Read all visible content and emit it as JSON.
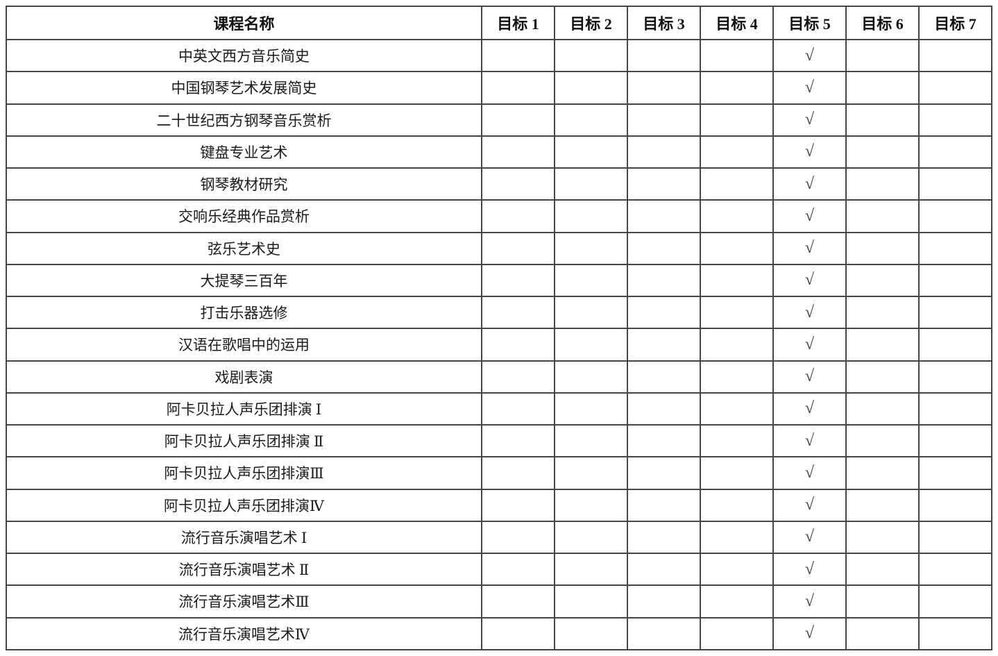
{
  "document": {
    "table": {
      "header": {
        "course_column": "课程名称",
        "goal_columns": [
          "目标 1",
          "目标 2",
          "目标 3",
          "目标 4",
          "目标 5",
          "目标 6",
          "目标 7"
        ]
      },
      "check_symbol": "√",
      "rows": [
        {
          "course": "中英文西方音乐简史",
          "checked_goals": [
            5
          ]
        },
        {
          "course": "中国钢琴艺术发展简史",
          "checked_goals": [
            5
          ]
        },
        {
          "course": "二十世纪西方钢琴音乐赏析",
          "checked_goals": [
            5
          ]
        },
        {
          "course": "键盘专业艺术",
          "checked_goals": [
            5
          ]
        },
        {
          "course": "钢琴教材研究",
          "checked_goals": [
            5
          ]
        },
        {
          "course": "交响乐经典作品赏析",
          "checked_goals": [
            5
          ]
        },
        {
          "course": "弦乐艺术史",
          "checked_goals": [
            5
          ]
        },
        {
          "course": "大提琴三百年",
          "checked_goals": [
            5
          ]
        },
        {
          "course": "打击乐器选修",
          "checked_goals": [
            5
          ]
        },
        {
          "course": "汉语在歌唱中的运用",
          "checked_goals": [
            5
          ]
        },
        {
          "course": "戏剧表演",
          "checked_goals": [
            5
          ]
        },
        {
          "course": "阿卡贝拉人声乐团排演 Ⅰ",
          "checked_goals": [
            5
          ]
        },
        {
          "course": "阿卡贝拉人声乐团排演 Ⅱ",
          "checked_goals": [
            5
          ]
        },
        {
          "course": "阿卡贝拉人声乐团排演Ⅲ",
          "checked_goals": [
            5
          ]
        },
        {
          "course": "阿卡贝拉人声乐团排演Ⅳ",
          "checked_goals": [
            5
          ]
        },
        {
          "course": "流行音乐演唱艺术 Ⅰ",
          "checked_goals": [
            5
          ]
        },
        {
          "course": "流行音乐演唱艺术 Ⅱ",
          "checked_goals": [
            5
          ]
        },
        {
          "course": "流行音乐演唱艺术Ⅲ",
          "checked_goals": [
            5
          ]
        },
        {
          "course": "流行音乐演唱艺术Ⅳ",
          "checked_goals": [
            5
          ]
        }
      ]
    },
    "colors": {
      "background": "#ffffff",
      "grid_line": "#454545",
      "outer_border": "#8a8a8a",
      "header_underline": "#1f1f1f",
      "text": "#1a1a1a",
      "check": "#333a52"
    }
  }
}
